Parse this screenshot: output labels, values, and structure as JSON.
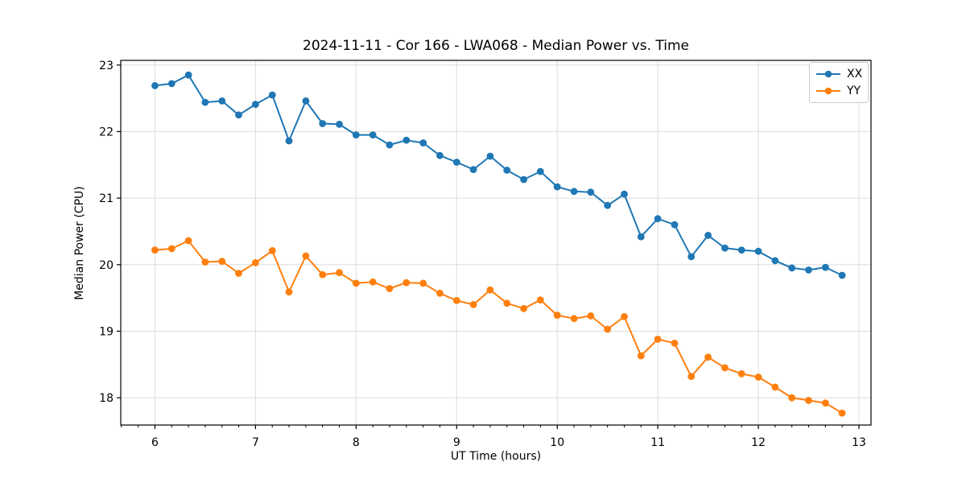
{
  "figure": {
    "background": "#ffffff"
  },
  "chart_data": {
    "type": "line",
    "title": "2024-11-11 - Cor 166 - LWA068 - Median Power vs. Time",
    "xlabel": "UT Time (hours)",
    "ylabel": "Median Power (CPU)",
    "xlim": [
      5.66,
      13.12
    ],
    "ylim": [
      17.59,
      23.07
    ],
    "xticks": [
      6,
      7,
      8,
      9,
      10,
      11,
      12,
      13
    ],
    "yticks": [
      18,
      19,
      20,
      21,
      22,
      23
    ],
    "x_minor_tick_step_hours": 0.1667,
    "grid": true,
    "grid_color": "#dcdcdc",
    "axis_color": "#000000",
    "legend_position": "upper right",
    "x": [
      6.0,
      6.167,
      6.333,
      6.5,
      6.667,
      6.833,
      7.0,
      7.167,
      7.333,
      7.5,
      7.667,
      7.833,
      8.0,
      8.167,
      8.333,
      8.5,
      8.667,
      8.833,
      9.0,
      9.167,
      9.333,
      9.5,
      9.667,
      9.833,
      10.0,
      10.167,
      10.333,
      10.5,
      10.667,
      10.833,
      11.0,
      11.167,
      11.333,
      11.5,
      11.667,
      11.833,
      12.0,
      12.167,
      12.333,
      12.5,
      12.667,
      12.833
    ],
    "series": [
      {
        "name": "XX",
        "color": "#1f77b4",
        "values": [
          22.69,
          22.72,
          22.85,
          22.44,
          22.46,
          22.25,
          22.41,
          22.55,
          21.86,
          22.46,
          22.12,
          22.11,
          21.95,
          21.95,
          21.8,
          21.87,
          21.83,
          21.64,
          21.54,
          21.43,
          21.63,
          21.42,
          21.28,
          21.4,
          21.17,
          21.1,
          21.09,
          20.89,
          21.06,
          20.42,
          20.69,
          20.6,
          20.12,
          20.44,
          20.25,
          20.22,
          20.2,
          20.06,
          19.95,
          19.92,
          19.96,
          19.84
        ]
      },
      {
        "name": "YY",
        "color": "#ff7f0e",
        "values": [
          20.22,
          20.24,
          20.36,
          20.04,
          20.05,
          19.87,
          20.03,
          20.21,
          19.59,
          20.13,
          19.85,
          19.88,
          19.72,
          19.74,
          19.64,
          19.73,
          19.72,
          19.57,
          19.46,
          19.4,
          19.62,
          19.42,
          19.34,
          19.47,
          19.24,
          19.19,
          19.23,
          19.03,
          19.22,
          18.63,
          18.88,
          18.82,
          18.32,
          18.61,
          18.45,
          18.36,
          18.31,
          18.16,
          18.0,
          17.96,
          17.92,
          17.77
        ]
      }
    ]
  }
}
